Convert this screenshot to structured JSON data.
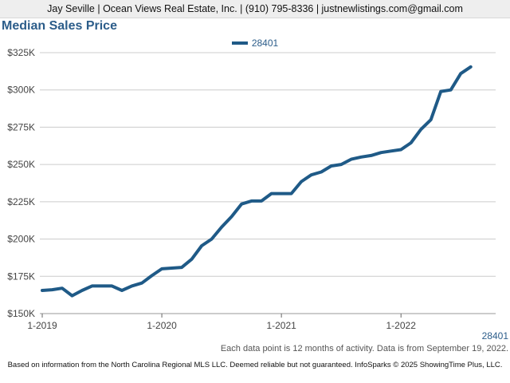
{
  "header": {
    "contact": "Jay Seville | Ocean Views Real Estate, Inc. | (910) 795-8336 | justnewlistings.com@gmail.com"
  },
  "zip_label": "28401",
  "note": "Each data point is 12 months of activity. Data is from September 19, 2022.",
  "footer": "Based on information from the North Carolina Regional MLS LLC. Deemed reliable but not guaranteed. InfoSparks © 2025 ShowingTime Plus, LLC.",
  "colors": {
    "series": "#1f5a87",
    "title": "#2c5d8a",
    "grid": "#cccccc"
  },
  "chart_data": {
    "type": "line",
    "title": "Median Sales Price",
    "xlabel": "",
    "ylabel": "",
    "ylim": [
      150000,
      325000
    ],
    "yticks": [
      150000,
      175000,
      200000,
      225000,
      250000,
      275000,
      300000,
      325000
    ],
    "ytick_labels": [
      "$150K",
      "$175K",
      "$200K",
      "$225K",
      "$250K",
      "$275K",
      "$300K",
      "$325K"
    ],
    "xticks": [
      "2019-01",
      "2020-01",
      "2021-01",
      "2022-01"
    ],
    "xtick_labels": [
      "1-2019",
      "1-2020",
      "1-2021",
      "1-2022"
    ],
    "grid": true,
    "legend_position": "top-center",
    "series": [
      {
        "name": "28401",
        "x": [
          "2019-01",
          "2019-02",
          "2019-03",
          "2019-04",
          "2019-05",
          "2019-06",
          "2019-07",
          "2019-08",
          "2019-09",
          "2019-10",
          "2019-11",
          "2019-12",
          "2020-01",
          "2020-02",
          "2020-03",
          "2020-04",
          "2020-05",
          "2020-06",
          "2020-07",
          "2020-08",
          "2020-09",
          "2020-10",
          "2020-11",
          "2020-12",
          "2021-01",
          "2021-02",
          "2021-03",
          "2021-04",
          "2021-05",
          "2021-06",
          "2021-07",
          "2021-08",
          "2021-09",
          "2021-10",
          "2021-11",
          "2021-12",
          "2022-01",
          "2022-02",
          "2022-03",
          "2022-04",
          "2022-05",
          "2022-06",
          "2022-07",
          "2022-08"
        ],
        "values": [
          165500,
          166000,
          167000,
          162000,
          165500,
          168500,
          168500,
          168500,
          165500,
          168500,
          170500,
          175500,
          180000,
          180500,
          181000,
          186500,
          195500,
          200000,
          208000,
          215000,
          223500,
          225500,
          225500,
          230500,
          230500,
          230500,
          238500,
          243000,
          245000,
          249000,
          250000,
          253500,
          255000,
          256000,
          258000,
          259000,
          260000,
          264500,
          273500,
          280000,
          299000,
          300000,
          311000,
          315500
        ]
      }
    ]
  }
}
